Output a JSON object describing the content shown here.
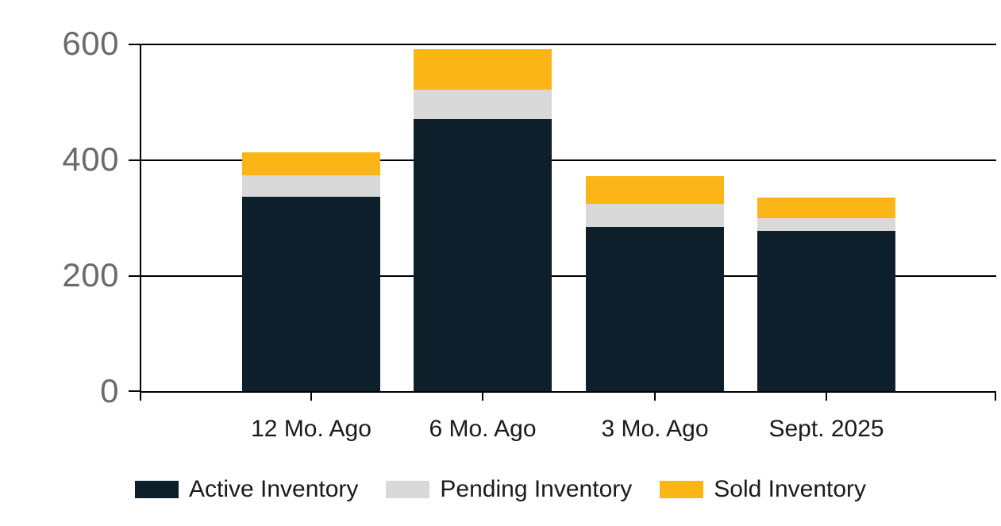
{
  "chart_data": {
    "type": "bar",
    "stacked": true,
    "categories": [
      "12 Mo. Ago",
      "6 Mo. Ago",
      "3 Mo. Ago",
      "Sept. 2025"
    ],
    "series": [
      {
        "name": "Active Inventory",
        "color": "#0D1F2B",
        "values": [
          335,
          470,
          284,
          277
        ]
      },
      {
        "name": "Pending Inventory",
        "color": "#D9D9DA",
        "values": [
          38,
          50,
          40,
          21
        ]
      },
      {
        "name": "Sold Inventory",
        "color": "#FBB516",
        "values": [
          40,
          70,
          47,
          36
        ]
      }
    ],
    "totals": [
      413,
      590,
      371,
      334
    ],
    "y_axis": {
      "min": 0,
      "max": 600,
      "ticks": [
        "0",
        "200",
        "400",
        "600"
      ],
      "grid": true
    },
    "x_axis": {
      "label": ""
    },
    "legend_position": "bottom",
    "palette": {
      "axis_line": "#000000",
      "axis_label_color": "#6A6A6A",
      "category_label_color": "#1A1A1A",
      "background": "#FFFFFF"
    }
  }
}
